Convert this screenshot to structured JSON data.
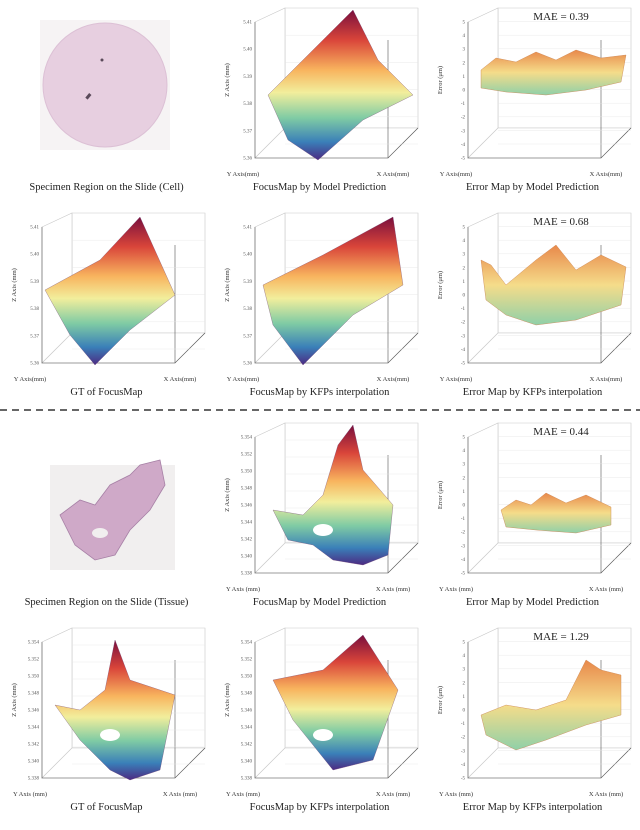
{
  "rows": [
    [
      {
        "caption": "Specimen Region on the Slide (Cell)"
      },
      {
        "caption": "FocusMap by Model Prediction",
        "z_label": "Z Axis (mm)",
        "y_label": "Y Axis(mm)",
        "x_label": "X Axis(mm)",
        "zticks": [
          "5.41",
          "5.40",
          "5.39",
          "5.38",
          "5.37",
          "5.36"
        ]
      },
      {
        "caption": "Error Map by Model Prediction",
        "mae": "MAE = 0.39",
        "z_label": "Error (μm)",
        "y_label": "Y Axis(mm)",
        "x_label": "X Axis(mm)",
        "zticks": [
          "5",
          "4",
          "3",
          "2",
          "1",
          "0",
          "-1",
          "-2",
          "-3",
          "-4",
          "-5"
        ]
      }
    ],
    [
      {
        "caption": "GT of FocusMap",
        "z_label": "Z Axis (mm)",
        "y_label": "Y Axis(mm)",
        "x_label": "X Axis(mm)",
        "zticks": [
          "5.41",
          "5.40",
          "5.39",
          "5.38",
          "5.37",
          "5.36"
        ]
      },
      {
        "caption": "FocusMap by KFPs interpolation",
        "z_label": "Z Axis (mm)",
        "y_label": "Y Axis(mm)",
        "x_label": "X Axis(mm)",
        "zticks": [
          "5.41",
          "5.40",
          "5.39",
          "5.38",
          "5.37",
          "5.36"
        ]
      },
      {
        "caption": "Error Map by KFPs interpolation",
        "mae": "MAE = 0.68",
        "z_label": "Error (μm)",
        "y_label": "Y Axis(mm)",
        "x_label": "X Axis(mm)",
        "zticks": [
          "5",
          "4",
          "3",
          "2",
          "1",
          "0",
          "-1",
          "-2",
          "-3",
          "-4",
          "-5"
        ]
      }
    ],
    [
      {
        "caption": "Specimen Region on the Slide (Tissue)"
      },
      {
        "caption": "FocusMap by Model Prediction",
        "z_label": "Z Axis (mm)",
        "y_label": "Y Axis (mm)",
        "x_label": "X Axis (mm)",
        "zticks": [
          "5.354",
          "5.352",
          "5.350",
          "5.348",
          "5.346",
          "5.344",
          "5.342",
          "5.340",
          "5.338"
        ]
      },
      {
        "caption": "Error Map by Model Prediction",
        "mae": "MAE = 0.44",
        "z_label": "Error (μm)",
        "y_label": "Y Axis (mm)",
        "x_label": "X Axis (mm)",
        "zticks": [
          "5",
          "4",
          "3",
          "2",
          "1",
          "0",
          "-1",
          "-2",
          "-3",
          "-4",
          "-5"
        ]
      }
    ],
    [
      {
        "caption": "GT of FocusMap",
        "z_label": "Z Axis (mm)",
        "y_label": "Y Axis (mm)",
        "x_label": "X Axis (mm)",
        "zticks": [
          "5.354",
          "5.352",
          "5.350",
          "5.348",
          "5.346",
          "5.344",
          "5.342",
          "5.340",
          "5.338"
        ]
      },
      {
        "caption": "FocusMap by KFPs interpolation",
        "z_label": "Z Axis (mm)",
        "y_label": "Y Axis (mm)",
        "x_label": "X Axis (mm)",
        "zticks": [
          "5.354",
          "5.352",
          "5.350",
          "5.348",
          "5.346",
          "5.344",
          "5.342",
          "5.340",
          "5.338"
        ]
      },
      {
        "caption": "Error Map by KFPs interpolation",
        "mae": "MAE = 1.29",
        "z_label": "Error (μm)",
        "y_label": "Y Axis (mm)",
        "x_label": "X Axis (mm)",
        "zticks": [
          "5",
          "4",
          "3",
          "2",
          "1",
          "0",
          "-1",
          "-2",
          "-3",
          "-4",
          "-5"
        ]
      }
    ]
  ]
}
